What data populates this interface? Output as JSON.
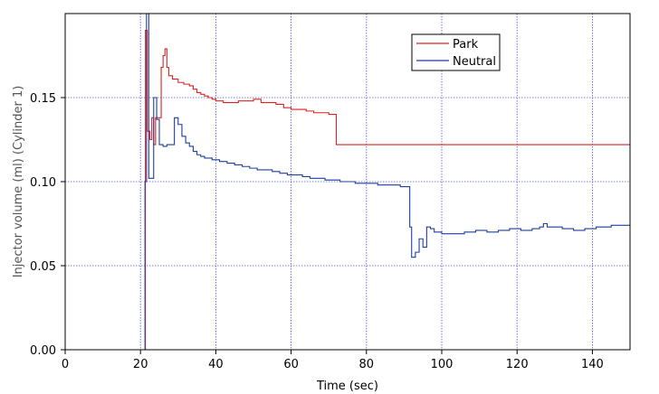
{
  "chart_data": {
    "type": "line",
    "title": "",
    "xlabel": "Time (sec)",
    "ylabel": "Injector volume (ml) (Cylinder 1)",
    "xlim": [
      0,
      150
    ],
    "ylim": [
      0,
      0.2
    ],
    "x_ticks": [
      0,
      20,
      40,
      60,
      80,
      100,
      120,
      140
    ],
    "x_tick_labels": [
      "0",
      "20",
      "40",
      "60",
      "80",
      "100",
      "120",
      "140"
    ],
    "y_ticks": [
      0,
      0.05,
      0.1,
      0.15
    ],
    "y_tick_labels": [
      "0.00",
      "0.05",
      "0.10",
      "0.15"
    ],
    "grid": true,
    "legend_position": "top-right",
    "series": [
      {
        "name": "Park",
        "color": "#dd2222",
        "step": true,
        "points": [
          [
            0,
            0
          ],
          [
            21,
            0
          ],
          [
            21.3,
            0.19
          ],
          [
            21.8,
            0.13
          ],
          [
            22.5,
            0.125
          ],
          [
            23,
            0.138
          ],
          [
            23.5,
            0.122
          ],
          [
            24,
            0.138
          ],
          [
            25,
            0.138
          ],
          [
            25.5,
            0.168
          ],
          [
            26,
            0.175
          ],
          [
            26.5,
            0.179
          ],
          [
            27,
            0.168
          ],
          [
            27.5,
            0.163
          ],
          [
            28.5,
            0.161
          ],
          [
            30,
            0.159
          ],
          [
            31.5,
            0.158
          ],
          [
            33,
            0.157
          ],
          [
            34,
            0.155
          ],
          [
            35,
            0.153
          ],
          [
            36,
            0.152
          ],
          [
            37,
            0.151
          ],
          [
            38,
            0.15
          ],
          [
            39,
            0.149
          ],
          [
            40,
            0.148
          ],
          [
            42,
            0.147
          ],
          [
            44,
            0.147
          ],
          [
            46,
            0.148
          ],
          [
            48,
            0.148
          ],
          [
            50,
            0.149
          ],
          [
            52,
            0.147
          ],
          [
            54,
            0.147
          ],
          [
            56,
            0.146
          ],
          [
            58,
            0.144
          ],
          [
            60,
            0.143
          ],
          [
            62,
            0.143
          ],
          [
            64,
            0.142
          ],
          [
            66,
            0.141
          ],
          [
            68,
            0.141
          ],
          [
            70,
            0.14
          ],
          [
            72,
            0.122
          ],
          [
            150,
            0.122
          ]
        ]
      },
      {
        "name": "Neutral",
        "color": "#1f3f9a",
        "step": true,
        "points": [
          [
            0,
            0
          ],
          [
            20.8,
            0
          ],
          [
            21.2,
            0.1
          ],
          [
            21.6,
            0.2
          ],
          [
            22.2,
            0.102
          ],
          [
            23,
            0.102
          ],
          [
            23.5,
            0.15
          ],
          [
            24.3,
            0.137
          ],
          [
            25,
            0.122
          ],
          [
            26,
            0.121
          ],
          [
            27,
            0.122
          ],
          [
            28,
            0.122
          ],
          [
            29,
            0.138
          ],
          [
            30,
            0.134
          ],
          [
            31,
            0.127
          ],
          [
            32,
            0.123
          ],
          [
            33,
            0.121
          ],
          [
            34,
            0.118
          ],
          [
            35,
            0.116
          ],
          [
            36,
            0.115
          ],
          [
            37,
            0.114
          ],
          [
            39,
            0.113
          ],
          [
            41,
            0.112
          ],
          [
            43,
            0.111
          ],
          [
            45,
            0.11
          ],
          [
            47,
            0.109
          ],
          [
            49,
            0.108
          ],
          [
            51,
            0.107
          ],
          [
            53,
            0.107
          ],
          [
            55,
            0.106
          ],
          [
            57,
            0.105
          ],
          [
            59,
            0.104
          ],
          [
            61,
            0.104
          ],
          [
            63,
            0.103
          ],
          [
            65,
            0.102
          ],
          [
            67,
            0.102
          ],
          [
            69,
            0.101
          ],
          [
            71,
            0.101
          ],
          [
            73,
            0.1
          ],
          [
            75,
            0.1
          ],
          [
            77,
            0.099
          ],
          [
            79,
            0.099
          ],
          [
            81,
            0.099
          ],
          [
            83,
            0.098
          ],
          [
            85,
            0.098
          ],
          [
            87,
            0.098
          ],
          [
            89,
            0.097
          ],
          [
            91,
            0.097
          ],
          [
            91.5,
            0.073
          ],
          [
            92,
            0.055
          ],
          [
            93,
            0.058
          ],
          [
            94,
            0.066
          ],
          [
            95,
            0.061
          ],
          [
            96,
            0.073
          ],
          [
            97,
            0.072
          ],
          [
            98,
            0.07
          ],
          [
            100,
            0.069
          ],
          [
            103,
            0.069
          ],
          [
            106,
            0.07
          ],
          [
            109,
            0.071
          ],
          [
            112,
            0.07
          ],
          [
            115,
            0.071
          ],
          [
            118,
            0.072
          ],
          [
            121,
            0.071
          ],
          [
            124,
            0.072
          ],
          [
            126,
            0.073
          ],
          [
            127,
            0.075
          ],
          [
            128,
            0.073
          ],
          [
            130,
            0.073
          ],
          [
            132,
            0.072
          ],
          [
            135,
            0.071
          ],
          [
            138,
            0.072
          ],
          [
            141,
            0.073
          ],
          [
            143,
            0.073
          ],
          [
            145,
            0.074
          ],
          [
            150,
            0.074
          ]
        ]
      }
    ]
  }
}
